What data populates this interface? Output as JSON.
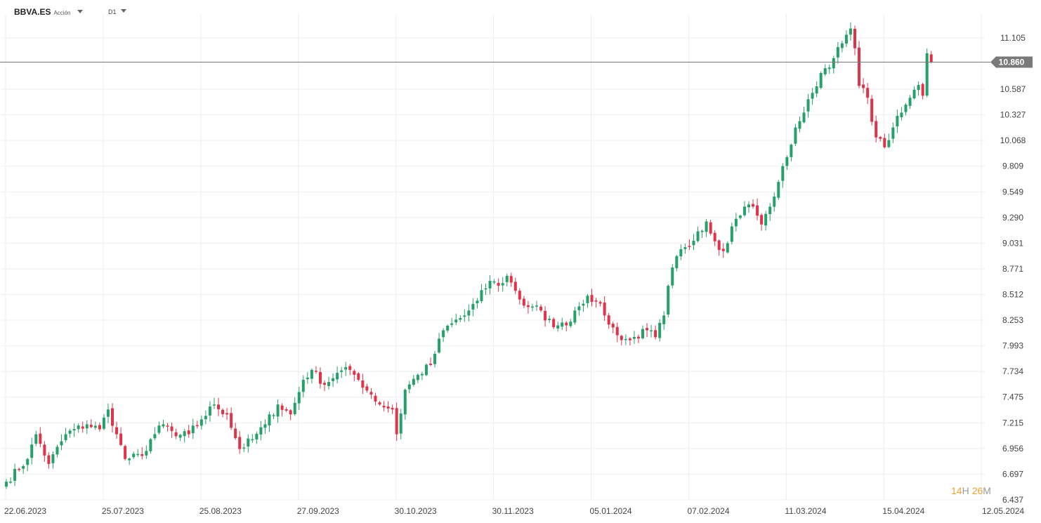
{
  "toolbar": {
    "symbol": "BBVA.ES",
    "asset_type": "Acción",
    "timeframe": "D1"
  },
  "countdown": {
    "hours": "14",
    "h_unit": "H",
    "minutes": "26",
    "m_unit": "M"
  },
  "colors": {
    "up": "#26a06b",
    "down": "#e0334a",
    "grid": "#eeeeee",
    "price_line": "#777777",
    "label_bg": "#7a7a7a",
    "countdown": "#f0a030"
  },
  "chart_data": {
    "type": "candlestick",
    "current_price": 10.86,
    "current_price_label": "10.860",
    "ylim": [
      6.437,
      11.3
    ],
    "y_ticks": [
      11.105,
      10.587,
      10.327,
      10.068,
      9.809,
      9.549,
      9.29,
      9.031,
      8.771,
      8.512,
      8.253,
      7.993,
      7.734,
      7.475,
      7.215,
      6.956,
      6.697,
      6.437
    ],
    "y_tick_labels": [
      "11.105",
      "10.587",
      "10.327",
      "10.068",
      "9.809",
      "9.549",
      "9.290",
      "9.031",
      "8.771",
      "8.512",
      "8.253",
      "7.993",
      "7.734",
      "7.475",
      "7.215",
      "6.956",
      "6.697",
      "6.437"
    ],
    "x_tick_labels": [
      "22.06.2023",
      "25.07.2023",
      "25.08.2023",
      "27.09.2023",
      "30.10.2023",
      "30.11.2023",
      "05.01.2024",
      "07.02.2024",
      "11.03.2024",
      "15.04.2024",
      "12.05.2024"
    ],
    "x_tick_candle_index": [
      0,
      23,
      46,
      69,
      92,
      115,
      138,
      161,
      184,
      207,
      230
    ],
    "grid": true,
    "keypoints": [
      [
        0,
        6.62
      ],
      [
        5,
        6.85
      ],
      [
        7,
        7.1
      ],
      [
        10,
        6.8
      ],
      [
        14,
        7.1
      ],
      [
        19,
        7.2
      ],
      [
        22,
        7.15
      ],
      [
        24,
        7.35
      ],
      [
        26,
        7.1
      ],
      [
        28,
        6.85
      ],
      [
        32,
        6.88
      ],
      [
        34,
        7.05
      ],
      [
        37,
        7.2
      ],
      [
        40,
        7.08
      ],
      [
        43,
        7.1
      ],
      [
        46,
        7.25
      ],
      [
        49,
        7.4
      ],
      [
        52,
        7.3
      ],
      [
        55,
        6.95
      ],
      [
        58,
        7.05
      ],
      [
        61,
        7.2
      ],
      [
        64,
        7.4
      ],
      [
        67,
        7.3
      ],
      [
        70,
        7.65
      ],
      [
        72,
        7.75
      ],
      [
        75,
        7.6
      ],
      [
        78,
        7.72
      ],
      [
        81,
        7.75
      ],
      [
        83,
        7.65
      ],
      [
        86,
        7.5
      ],
      [
        88,
        7.4
      ],
      [
        91,
        7.35
      ],
      [
        92,
        7.1
      ],
      [
        94,
        7.55
      ],
      [
        97,
        7.7
      ],
      [
        100,
        7.8
      ],
      [
        103,
        8.15
      ],
      [
        105,
        8.22
      ],
      [
        108,
        8.3
      ],
      [
        111,
        8.45
      ],
      [
        114,
        8.65
      ],
      [
        116,
        8.6
      ],
      [
        118,
        8.7
      ],
      [
        120,
        8.55
      ],
      [
        122,
        8.4
      ],
      [
        125,
        8.4
      ],
      [
        127,
        8.25
      ],
      [
        130,
        8.2
      ],
      [
        132,
        8.2
      ],
      [
        134,
        8.35
      ],
      [
        137,
        8.5
      ],
      [
        139,
        8.45
      ],
      [
        141,
        8.3
      ],
      [
        144,
        8.1
      ],
      [
        147,
        8.05
      ],
      [
        151,
        8.15
      ],
      [
        153,
        8.08
      ],
      [
        155,
        8.3
      ],
      [
        156,
        8.6
      ],
      [
        158,
        8.9
      ],
      [
        161,
        9.0
      ],
      [
        163,
        9.15
      ],
      [
        165,
        9.25
      ],
      [
        167,
        9.05
      ],
      [
        169,
        8.95
      ],
      [
        171,
        9.2
      ],
      [
        174,
        9.4
      ],
      [
        176,
        9.4
      ],
      [
        178,
        9.22
      ],
      [
        180,
        9.4
      ],
      [
        182,
        9.65
      ],
      [
        184,
        9.9
      ],
      [
        186,
        10.2
      ],
      [
        188,
        10.35
      ],
      [
        190,
        10.55
      ],
      [
        192,
        10.75
      ],
      [
        195,
        10.9
      ],
      [
        197,
        11.05
      ],
      [
        199,
        11.2
      ],
      [
        200,
        11.0
      ],
      [
        201,
        10.62
      ],
      [
        203,
        10.5
      ],
      [
        205,
        10.1
      ],
      [
        207,
        10.0
      ],
      [
        209,
        10.2
      ],
      [
        211,
        10.35
      ],
      [
        213,
        10.5
      ],
      [
        215,
        10.63
      ],
      [
        216,
        10.52
      ],
      [
        217,
        10.95
      ],
      [
        218,
        10.86
      ]
    ]
  }
}
